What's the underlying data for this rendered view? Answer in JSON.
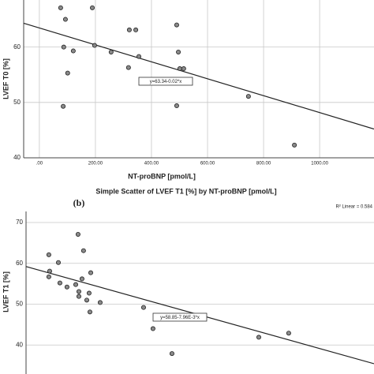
{
  "chart_data": [
    {
      "type": "scatter",
      "xlabel": "NT-proBNP  [pmol/L]",
      "ylabel": "LVEF T0 [%]",
      "x": [
        76,
        189,
        93,
        87,
        197,
        121,
        101,
        85,
        256,
        321,
        344,
        318,
        355,
        490,
        496,
        501,
        515,
        490,
        746,
        910
      ],
      "values": [
        67.1,
        67.1,
        65,
        60,
        60.3,
        59.3,
        55.3,
        49.3,
        59.1,
        63.1,
        63.1,
        56.3,
        58.3,
        64,
        59.1,
        56.1,
        56.1,
        49.4,
        51.1,
        42.3
      ],
      "xlim": [
        -56,
        1194
      ],
      "ylim": [
        40,
        68.5
      ],
      "xticks": [
        {
          "value": 0,
          "label": ".00"
        },
        {
          "value": 200,
          "label": "200.00"
        },
        {
          "value": 400,
          "label": "400.00"
        },
        {
          "value": 600,
          "label": "600.00"
        },
        {
          "value": 800,
          "label": "800.00"
        },
        {
          "value": 1000,
          "label": "1000.00"
        }
      ],
      "yticks": [
        40,
        50,
        60
      ],
      "grid": true,
      "fit": {
        "label": "y=63.34-0.02*x",
        "x": [
          -56,
          1194
        ],
        "y": [
          64.3,
          45.2
        ]
      }
    },
    {
      "type": "scatter",
      "title": "Simple Scatter of LVEF T1 [%]  by NT-proBNP  [pmol/L]",
      "panel": "(b)",
      "r2": "R² Linear = 0.584",
      "ylabel": "LVEF T1 [%]",
      "x": [
        149,
        156,
        149,
        231,
        244,
        305,
        380,
        400,
        407,
        407,
        434,
        447,
        475,
        495,
        502,
        509,
        590,
        963,
        1044,
        1207,
        1953,
        2210
      ],
      "values": [
        56.7,
        58.1,
        62.1,
        60.2,
        55.2,
        54.2,
        54.8,
        67.1,
        53.1,
        51.9,
        56.2,
        63.1,
        51,
        52.7,
        48.1,
        57.7,
        50.4,
        49.2,
        44,
        37.9,
        41.9,
        42.9
      ],
      "xlim": [
        -47,
        2943
      ],
      "ylim": [
        32.9,
        72.7
      ],
      "yticks": [
        40,
        50,
        60,
        70
      ],
      "grid": true,
      "fit": {
        "label": "y=58.85-7.96E-3*x",
        "x": [
          -47,
          2943
        ],
        "y": [
          59.22,
          35.42
        ]
      }
    }
  ]
}
